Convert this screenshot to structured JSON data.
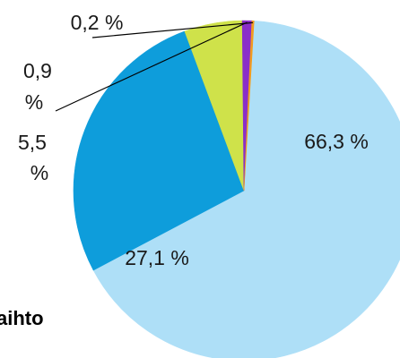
{
  "chart_data": {
    "type": "pie",
    "slices": [
      {
        "label": "66,3 %",
        "value": 66.3,
        "color": "#aedff7"
      },
      {
        "label": "27,1 %",
        "value": 27.1,
        "color": "#0e9ddb"
      },
      {
        "label": "5,5 %",
        "label_lines": [
          "5,5",
          "%"
        ],
        "value": 5.5,
        "color": "#cfe24a"
      },
      {
        "label": "0,9 %",
        "label_lines": [
          "0,9",
          "%"
        ],
        "value": 0.9,
        "color": "#8a2ec9"
      },
      {
        "label": "0,2 %",
        "value": 0.2,
        "color": "#f29b1f"
      }
    ],
    "start_angle_deg": 86.6,
    "direction": "clockwise",
    "clipped_text": "aihto"
  }
}
